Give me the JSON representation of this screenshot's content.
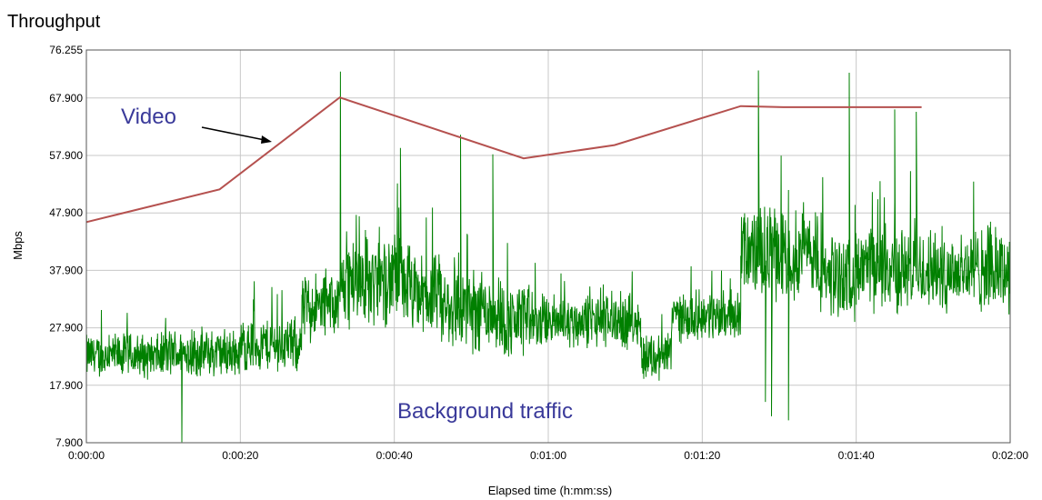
{
  "chart_data": {
    "type": "line",
    "title": "Throughput",
    "xlabel": "Elapsed time (h:mm:ss)",
    "ylabel": "Mbps",
    "xlim": [
      0,
      120
    ],
    "ylim": [
      7.9,
      76.255
    ],
    "x_ticks": [
      {
        "value": 0,
        "label": "0:00:00"
      },
      {
        "value": 20,
        "label": "0:00:20"
      },
      {
        "value": 40,
        "label": "0:00:40"
      },
      {
        "value": 60,
        "label": "0:01:00"
      },
      {
        "value": 80,
        "label": "0:01:20"
      },
      {
        "value": 100,
        "label": "0:01:40"
      },
      {
        "value": 120,
        "label": "0:02:00"
      }
    ],
    "y_ticks": [
      {
        "value": 7.9,
        "label": "7.900"
      },
      {
        "value": 17.9,
        "label": "17.900"
      },
      {
        "value": 27.9,
        "label": "27.900"
      },
      {
        "value": 37.9,
        "label": "37.900"
      },
      {
        "value": 47.9,
        "label": "47.900"
      },
      {
        "value": 57.9,
        "label": "57.900"
      },
      {
        "value": 67.9,
        "label": "67.900"
      },
      {
        "value": 76.255,
        "label": "76.255"
      }
    ],
    "grid": true,
    "series": [
      {
        "name": "Video",
        "color": "#b5514f",
        "x": [
          0,
          17.3,
          32.9,
          56.8,
          68.6,
          85.0,
          90.5,
          108.5
        ],
        "y": [
          46.3,
          52.0,
          68.0,
          57.4,
          59.7,
          66.5,
          66.3,
          66.3
        ]
      },
      {
        "name": "Background traffic",
        "color": "#008000",
        "segments": [
          {
            "x0": 0,
            "x1": 10,
            "base": 23.0,
            "amp": 4.5
          },
          {
            "x0": 10,
            "x1": 20,
            "base": 23.5,
            "amp": 5.0
          },
          {
            "x0": 20,
            "x1": 28,
            "base": 25.0,
            "amp": 5.5
          },
          {
            "x0": 28,
            "x1": 33,
            "base": 31.5,
            "amp": 7.0
          },
          {
            "x0": 33,
            "x1": 42,
            "base": 36.0,
            "amp": 9.0
          },
          {
            "x0": 42,
            "x1": 46,
            "base": 33.5,
            "amp": 8.0
          },
          {
            "x0": 46,
            "x1": 54,
            "base": 31.0,
            "amp": 8.5
          },
          {
            "x0": 54,
            "x1": 58,
            "base": 29.0,
            "amp": 7.5
          },
          {
            "x0": 58,
            "x1": 72,
            "base": 29.0,
            "amp": 5.5
          },
          {
            "x0": 72,
            "x1": 76,
            "base": 23.0,
            "amp": 5.0
          },
          {
            "x0": 76,
            "x1": 85,
            "base": 30.0,
            "amp": 5.0
          },
          {
            "x0": 85,
            "x1": 95,
            "base": 41.0,
            "amp": 9.0
          },
          {
            "x0": 95,
            "x1": 100,
            "base": 37.0,
            "amp": 8.5
          },
          {
            "x0": 100,
            "x1": 120,
            "base": 38.0,
            "amp": 8.5
          }
        ],
        "spikes": [
          [
            33,
            72.5
          ],
          [
            40.8,
            59.2
          ],
          [
            48.6,
            61.5
          ],
          [
            52.8,
            58.1
          ],
          [
            87.3,
            72.7
          ],
          [
            99.1,
            72.3
          ],
          [
            105.0,
            65.9
          ],
          [
            107.8,
            65.5
          ]
        ],
        "dips": [
          [
            12.4,
            8.0
          ],
          [
            89.0,
            12.5
          ],
          [
            91.2,
            11.8
          ],
          [
            88.2,
            15.0
          ]
        ]
      }
    ],
    "annotations": [
      {
        "text": "Video",
        "color": "#3a3a9a"
      },
      {
        "text": "Background traffic",
        "color": "#3a3a9a"
      }
    ]
  }
}
